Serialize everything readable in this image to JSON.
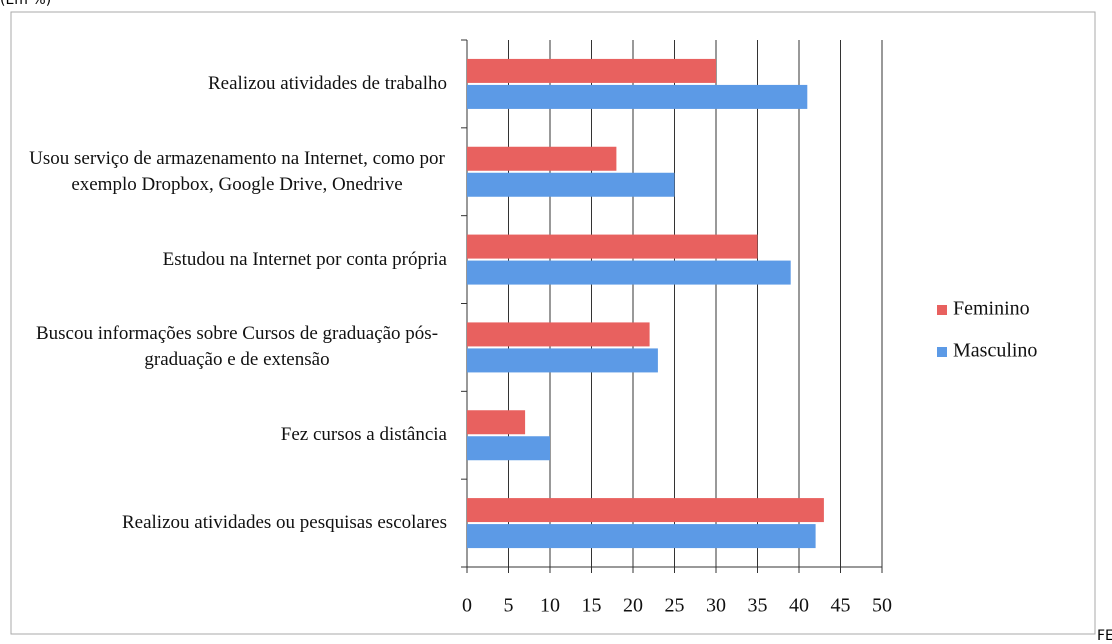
{
  "chart_data": {
    "type": "bar",
    "orientation": "horizontal",
    "subtitle": "(Em %)",
    "source": "FE",
    "categories": [
      "Realizou atividades de trabalho",
      "Usou serviço de armazenamento na Internet, como por exemplo Dropbox, Google Drive, Onedrive",
      "Estudou na Internet por conta própria",
      "Buscou informações sobre Cursos de graduação pós-graduação e de extensão",
      "Fez cursos a distância",
      "Realizou atividades ou pesquisas escolares"
    ],
    "series": [
      {
        "name": "Feminino",
        "color": "#e8615f",
        "values": [
          30,
          18,
          35,
          22,
          7,
          43
        ]
      },
      {
        "name": "Masculino",
        "color": "#5c9ae6",
        "values": [
          41,
          25,
          39,
          23,
          10,
          42
        ]
      }
    ],
    "xlim": [
      0,
      50
    ],
    "xticks": [
      0,
      5,
      10,
      15,
      20,
      25,
      30,
      35,
      40,
      45,
      50
    ],
    "grid": true,
    "legend": "right"
  }
}
